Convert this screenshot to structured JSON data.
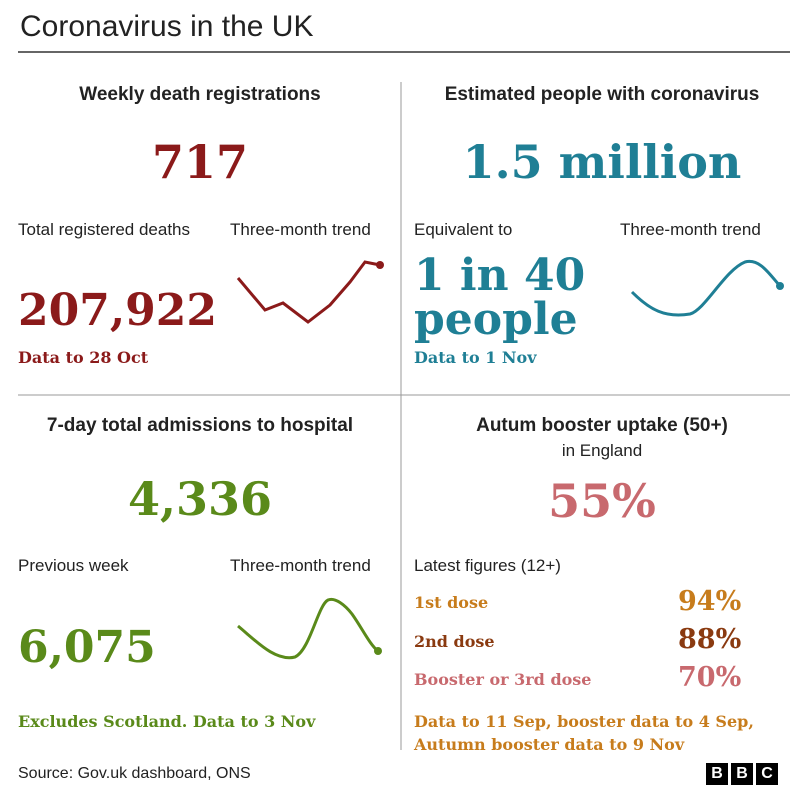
{
  "header": {
    "title": "Coronavirus in the UK"
  },
  "panels": [
    {
      "title": "Weekly death registrations",
      "value": "717",
      "left_label": "Total registered deaths",
      "trend_label": "Three-month trend",
      "stat": "207,922",
      "note": "Data to 28 Oct"
    },
    {
      "title": "Estimated people with coronavirus",
      "value": "1.5 million",
      "left_label": "Equivalent to",
      "trend_label": "Three-month trend",
      "stat_lines": [
        "1 in 40",
        "people"
      ],
      "note": "Data to 1 Nov"
    },
    {
      "title": "7-day total admissions to hospital",
      "value": "4,336",
      "left_label": "Previous week",
      "trend_label": "Three-month trend",
      "stat": "6,075",
      "note": "Excludes Scotland. Data to 3 Nov"
    },
    {
      "title": "Autum booster uptake (50+)",
      "subtitle": "in England",
      "value": "55%",
      "left_label": "Latest figures (12+)",
      "rows": [
        [
          "1st dose",
          "94%"
        ],
        [
          "2nd dose",
          "88%"
        ],
        [
          "Booster or 3rd dose",
          "70%"
        ]
      ],
      "note_lines": [
        "Data to 11 Sep, booster data to 4 Sep,",
        "Autumn booster data to 9 Nov"
      ]
    }
  ],
  "footer": {
    "source": "Source: Gov.uk dashboard, ONS",
    "logo": [
      "B",
      "B",
      "C"
    ]
  }
}
